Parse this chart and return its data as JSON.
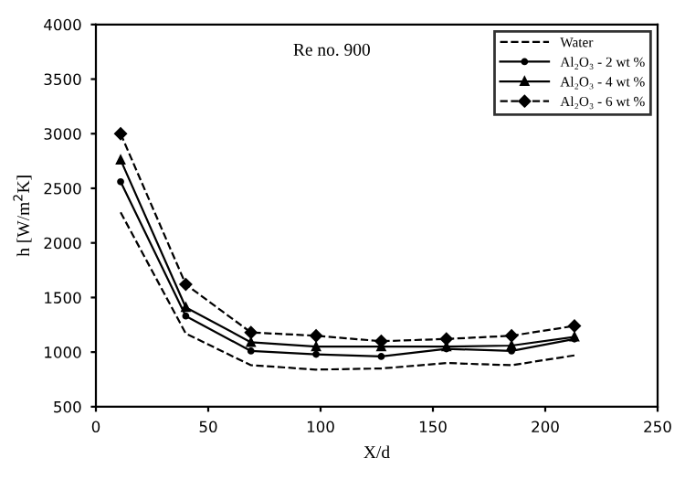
{
  "chart_data": {
    "type": "line",
    "xlabel": "X/d",
    "ylabel": "h [W/m$^{2}$K]",
    "annotations": [
      "Re no. 900"
    ],
    "x": [
      11,
      40,
      69,
      98,
      127,
      156,
      185,
      213
    ],
    "series": [
      {
        "name": "Water",
        "color": "#000000",
        "line_style": "dashed",
        "marker": "none",
        "values": [
          2280,
          1170,
          880,
          840,
          850,
          900,
          880,
          970
        ]
      },
      {
        "name": "Al₂O₃ - 2 wt %",
        "color": "#000000",
        "line_style": "solid",
        "marker": "circle",
        "values": [
          2560,
          1330,
          1010,
          980,
          960,
          1030,
          1010,
          1120
        ]
      },
      {
        "name": "Al₂O₃ - 4 wt %",
        "color": "#000000",
        "line_style": "solid",
        "marker": "triangle",
        "values": [
          2760,
          1410,
          1090,
          1050,
          1050,
          1050,
          1060,
          1140
        ]
      },
      {
        "name": "Al₂O₃ - 6 wt %",
        "color": "#000000",
        "line_style": "dashed",
        "marker": "diamond",
        "values": [
          3000,
          1620,
          1180,
          1150,
          1100,
          1120,
          1150,
          1240
        ]
      }
    ],
    "xlim": [
      0,
      250
    ],
    "xticks": [
      0,
      50,
      100,
      150,
      200,
      250
    ],
    "ylim": [
      500,
      4000
    ],
    "yticks": [
      500,
      1000,
      1500,
      2000,
      2500,
      3000,
      3500,
      4000
    ],
    "grid": false,
    "legend": "top right"
  }
}
